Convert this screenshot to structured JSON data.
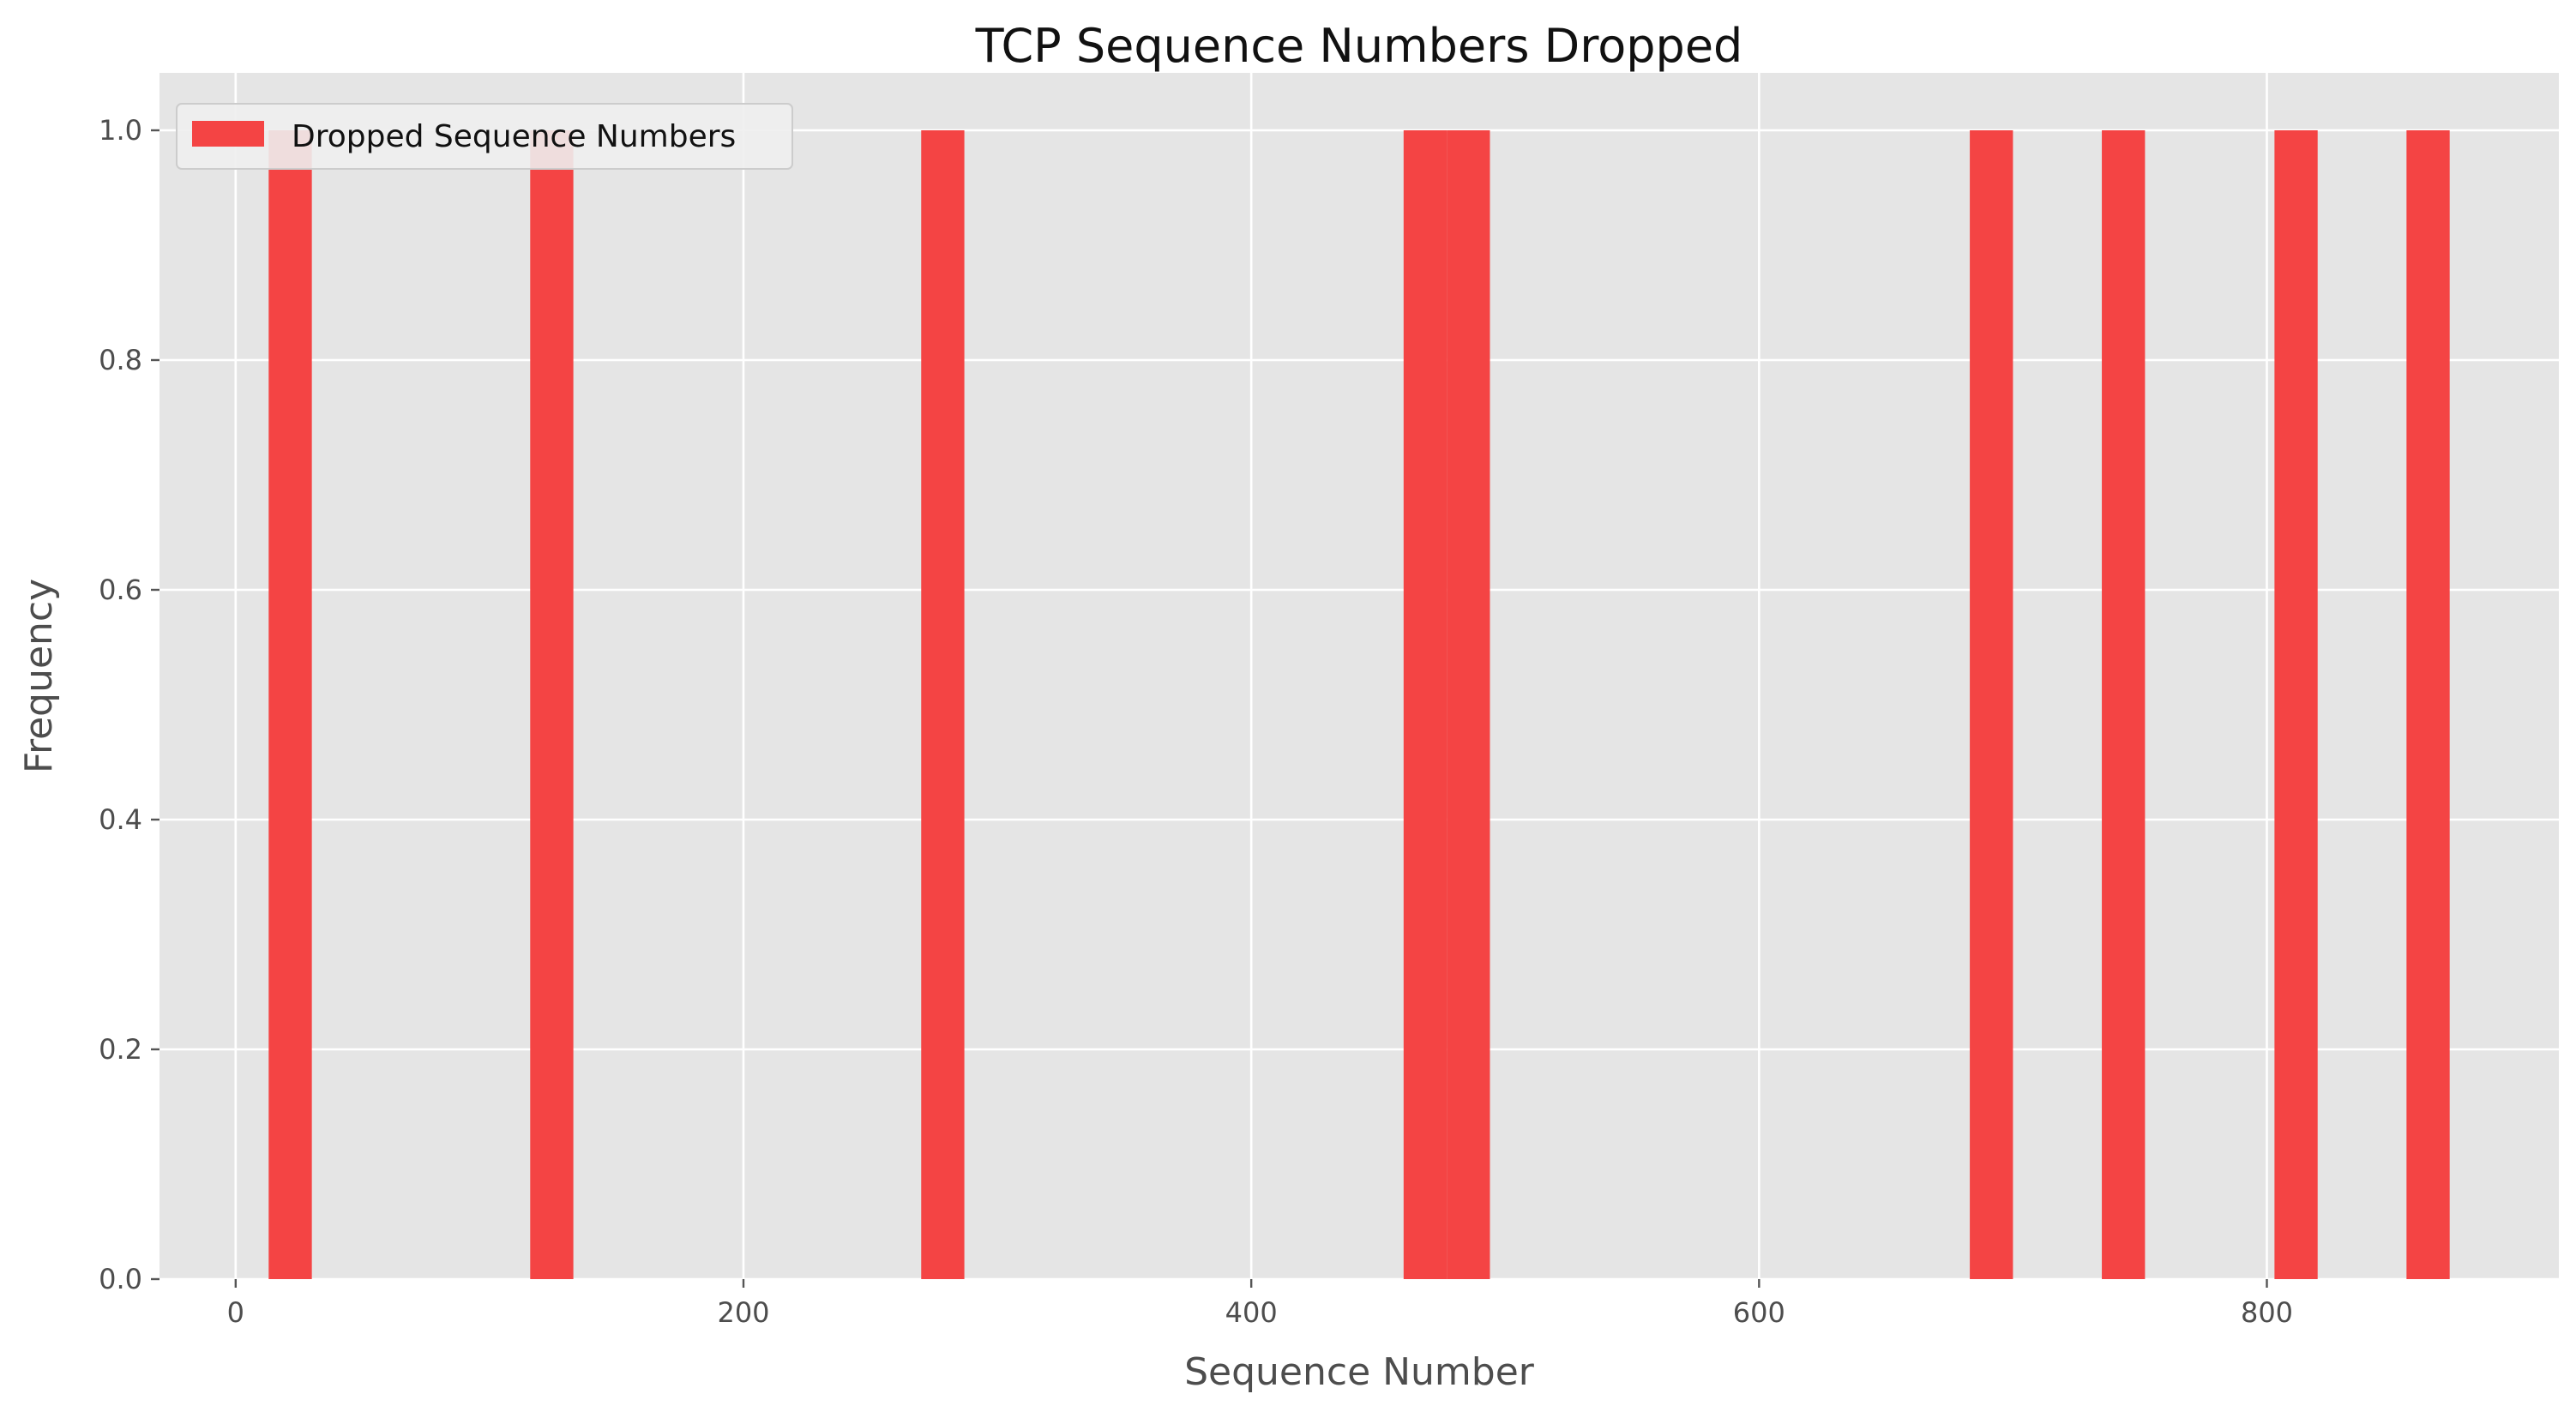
{
  "chart_data": {
    "type": "bar",
    "title": "TCP Sequence Numbers Dropped",
    "xlabel": "Sequence Number",
    "ylabel": "Frequency",
    "xlim": [
      -30,
      915
    ],
    "ylim": [
      0,
      1.05
    ],
    "x_ticks": [
      0,
      200,
      400,
      600,
      800
    ],
    "y_ticks": [
      0.0,
      0.2,
      0.4,
      0.6,
      0.8,
      1.0
    ],
    "grid": true,
    "legend_position": "top-left",
    "bar_color": "#f44444",
    "bins": [
      {
        "start": 13,
        "end": 30,
        "value": 1
      },
      {
        "start": 116,
        "end": 133,
        "value": 1
      },
      {
        "start": 270,
        "end": 287,
        "value": 1
      },
      {
        "start": 460,
        "end": 477,
        "value": 1
      },
      {
        "start": 477,
        "end": 494,
        "value": 1
      },
      {
        "start": 683,
        "end": 700,
        "value": 1
      },
      {
        "start": 735,
        "end": 752,
        "value": 1
      },
      {
        "start": 803,
        "end": 820,
        "value": 1
      },
      {
        "start": 855,
        "end": 872,
        "value": 1
      }
    ],
    "series": [
      {
        "name": "Dropped Sequence Numbers",
        "color": "#f44444"
      }
    ]
  }
}
